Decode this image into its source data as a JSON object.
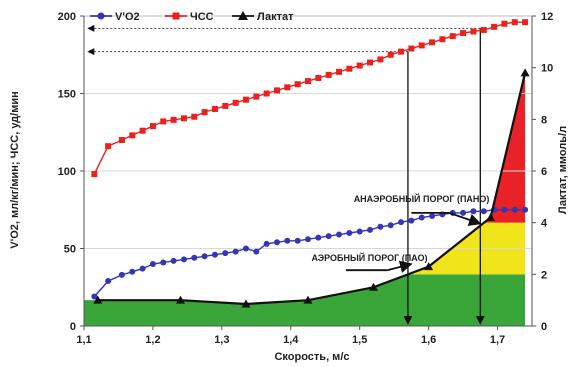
{
  "chart_data": {
    "type": "line",
    "title": "",
    "xlabel": "Скорость, м/с",
    "ylabel_left": "V'O2, мл/кг/мин;   ЧСС, уд/мин",
    "ylabel_right": "Лактат, ммоль/л",
    "xlim": [
      1.1,
      1.75
    ],
    "ylim_left": [
      0,
      200
    ],
    "ylim_right": [
      0,
      12
    ],
    "x_ticks": [
      "1,1",
      "1,2",
      "1,3",
      "1,4",
      "1,5",
      "1,6",
      "1,7"
    ],
    "y_left_ticks": [
      "0",
      "50",
      "100",
      "150",
      "200"
    ],
    "y_right_ticks": [
      "0",
      "2",
      "4",
      "6",
      "8",
      "10",
      "12"
    ],
    "grid": true,
    "legend_position": "top",
    "series": [
      {
        "name": "V'O2",
        "axis": "left",
        "color": "#3535b5",
        "marker": "circle",
        "x": [
          1.115,
          1.135,
          1.155,
          1.17,
          1.185,
          1.2,
          1.215,
          1.23,
          1.245,
          1.26,
          1.275,
          1.29,
          1.305,
          1.32,
          1.335,
          1.35,
          1.365,
          1.38,
          1.395,
          1.41,
          1.425,
          1.44,
          1.455,
          1.47,
          1.485,
          1.5,
          1.515,
          1.53,
          1.545,
          1.56,
          1.575,
          1.59,
          1.605,
          1.62,
          1.635,
          1.65,
          1.665,
          1.68,
          1.695,
          1.71,
          1.725,
          1.74
        ],
        "y": [
          19,
          29,
          33,
          35,
          37,
          40,
          41,
          42,
          43,
          44,
          45,
          46,
          47,
          48,
          50,
          48,
          53,
          54,
          55,
          55,
          56,
          57,
          58,
          59,
          60,
          61,
          62,
          64,
          65,
          67,
          68,
          70,
          71,
          72,
          73,
          73,
          74,
          74,
          75,
          75,
          75,
          75
        ]
      },
      {
        "name": "ЧСС",
        "axis": "left",
        "color": "#e8231e",
        "marker": "square",
        "x": [
          1.115,
          1.135,
          1.155,
          1.17,
          1.185,
          1.2,
          1.215,
          1.23,
          1.245,
          1.26,
          1.275,
          1.29,
          1.305,
          1.32,
          1.335,
          1.35,
          1.365,
          1.38,
          1.395,
          1.41,
          1.425,
          1.44,
          1.455,
          1.47,
          1.485,
          1.5,
          1.515,
          1.53,
          1.545,
          1.56,
          1.575,
          1.59,
          1.605,
          1.62,
          1.635,
          1.65,
          1.665,
          1.68,
          1.695,
          1.71,
          1.725,
          1.74
        ],
        "y": [
          98,
          116,
          120,
          123,
          126,
          129,
          132,
          133,
          134,
          135,
          138,
          140,
          142,
          144,
          146,
          148,
          150,
          152,
          154,
          156,
          158,
          160,
          162,
          164,
          166,
          168,
          170,
          172,
          175,
          177,
          179,
          181,
          183,
          185,
          187,
          189,
          190,
          191,
          193,
          195,
          196,
          196
        ]
      },
      {
        "name": "Лактат",
        "axis": "right",
        "color": "#111111",
        "marker": "triangle",
        "x": [
          1.12,
          1.24,
          1.335,
          1.425,
          1.52,
          1.6,
          1.69,
          1.74
        ],
        "y": [
          1.0,
          1.0,
          0.85,
          1.0,
          1.5,
          2.3,
          4.2,
          9.8
        ]
      }
    ],
    "zones": [
      {
        "color": "#3aa63a",
        "from": "xmin",
        "bottom": 0,
        "top": 2.0
      },
      {
        "color": "#f0e41a",
        "bottom": 2.0,
        "top": 4.0
      },
      {
        "color": "#e82226",
        "bottom": 4.0,
        "top": 12.0
      }
    ],
    "reference_lines": [
      {
        "x": 1.57,
        "y_left": 177
      },
      {
        "x": 1.675,
        "y_left": 192
      }
    ],
    "annotations": [
      {
        "text": "АНАЭРОБНЫЙ ПОРОГ (ПАНО)",
        "x": 1.5,
        "y_left": 80
      },
      {
        "text": "АЭРОБНЫЙ ПОРОГ (ПАО)",
        "x": 1.43,
        "y_left": 42
      }
    ]
  }
}
